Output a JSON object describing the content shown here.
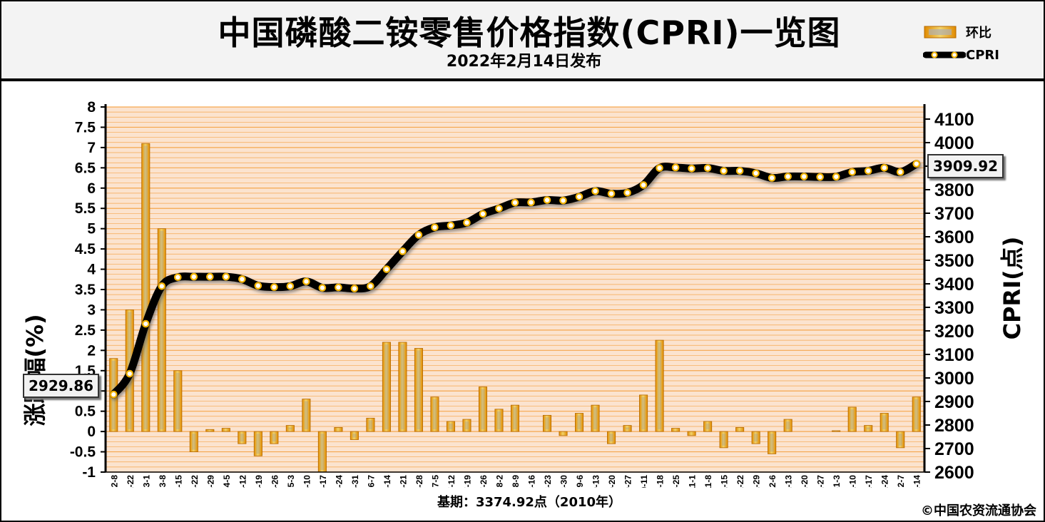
{
  "header": {
    "title": "中国磷酸二铵零售价格指数(CPRI)一览图",
    "subtitle": "2022年2月14日发布"
  },
  "legend": {
    "bar_label": "环比",
    "line_label": "CPRI"
  },
  "footer": {
    "base": "基期：3374.92点（2010年）",
    "copyright": "©中国农资流通协会"
  },
  "callouts": {
    "start": "2929.86",
    "end": "3909.92"
  },
  "colors": {
    "bar": "#e08a00",
    "bar_highlight": "#f2d36b",
    "plot_bg": "#fbe3cf",
    "grid": "#f5a040",
    "line": "#000000",
    "marker": "#f4b400"
  },
  "chart_data": {
    "type": "bar+line",
    "left_axis": {
      "label": "涨跌幅(%)",
      "range": [
        -1,
        8
      ],
      "ticks": [
        "-1",
        "-0.5",
        "0",
        "0.5",
        "1",
        "1.5",
        "2",
        "2.5",
        "3",
        "3.5",
        "4",
        "4.5",
        "5",
        "5.5",
        "6",
        "6.5",
        "7",
        "7.5",
        "8"
      ]
    },
    "right_axis": {
      "label": "CPRI(点)",
      "range": [
        2600,
        4100
      ],
      "ticks": [
        "2600",
        "2700",
        "2800",
        "2900",
        "3000",
        "3100",
        "3200",
        "3300",
        "3400",
        "3500",
        "3600",
        "3700",
        "3800",
        "3900",
        "4000",
        "4100"
      ]
    },
    "categories": [
      "2-8",
      "2-22",
      "3-1",
      "3-8",
      "3-15",
      "3-22",
      "3-29",
      "4-5",
      "4-12",
      "4-19",
      "4-26",
      "5-3",
      "5-10",
      "5-17",
      "5-24",
      "5-31",
      "6-7",
      "6-14",
      "6-21",
      "6-28",
      "7-5",
      "7-12",
      "7-19",
      "7-26",
      "8-2",
      "8-9",
      "8-16",
      "8-23",
      "8-30",
      "9-6",
      "9-13",
      "9-20",
      "9-27",
      "10-11",
      "10-18",
      "10-25",
      "11-1",
      "11-8",
      "11-15",
      "11-22",
      "11-29",
      "12-6",
      "12-13",
      "12-20",
      "12-27",
      "2022-1-3",
      "1-10",
      "1-17",
      "1-24",
      "2-7",
      "2-14"
    ],
    "series": [
      {
        "name": "环比",
        "axis": "left",
        "values": [
          1.8,
          3.0,
          7.1,
          5.0,
          1.5,
          -0.5,
          0.05,
          0.08,
          -0.3,
          -0.6,
          -0.3,
          0.15,
          0.8,
          -1.0,
          0.1,
          -0.2,
          0.33,
          2.2,
          2.2,
          2.05,
          0.85,
          0.25,
          0.3,
          1.1,
          0.55,
          0.65,
          0.0,
          0.4,
          -0.1,
          0.45,
          0.65,
          -0.3,
          0.15,
          0.9,
          2.25,
          0.08,
          -0.1,
          0.25,
          -0.4,
          0.1,
          -0.3,
          -0.55,
          0.3,
          0.0,
          0.0,
          0.02,
          0.6,
          0.15,
          0.45,
          -0.4,
          0.85
        ]
      },
      {
        "name": "CPRI",
        "axis": "right",
        "values": [
          2929.86,
          3018,
          3230,
          3390,
          3428,
          3430,
          3430,
          3430,
          3420,
          3392,
          3386,
          3390,
          3410,
          3383,
          3385,
          3380,
          3390,
          3462,
          3538,
          3608,
          3640,
          3648,
          3660,
          3697,
          3720,
          3745,
          3746,
          3756,
          3754,
          3770,
          3794,
          3783,
          3787,
          3820,
          3892,
          3894,
          3890,
          3892,
          3880,
          3880,
          3870,
          3850,
          3856,
          3856,
          3854,
          3855,
          3875,
          3880,
          3893,
          3875,
          3909.92
        ]
      }
    ]
  }
}
